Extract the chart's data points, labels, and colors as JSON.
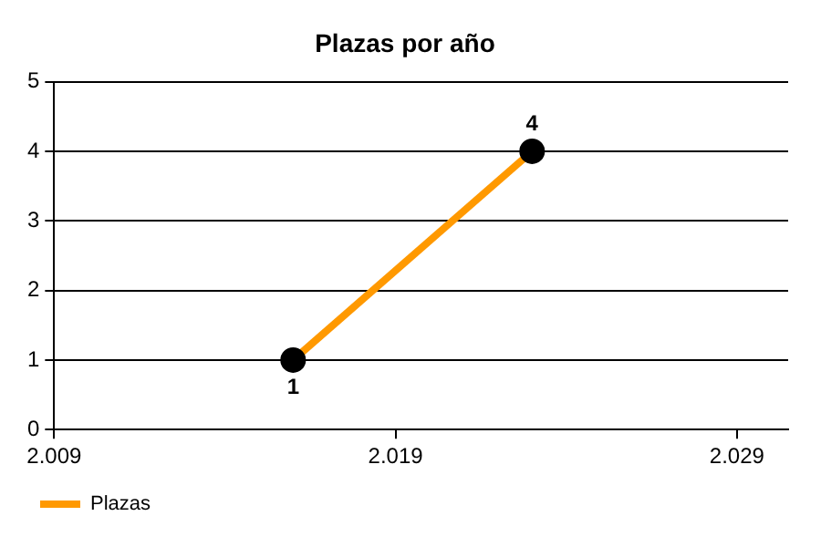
{
  "chart_data": {
    "type": "line",
    "title": "Plazas por año",
    "x": [
      2016,
      2023
    ],
    "series": [
      {
        "name": "Plazas",
        "color": "#ff9900",
        "values": [
          1,
          4
        ]
      }
    ],
    "xlim": [
      2009,
      2030.5
    ],
    "xticks": [
      {
        "value": 2009,
        "label": "2.009"
      },
      {
        "value": 2019,
        "label": "2.019"
      },
      {
        "value": 2029,
        "label": "2.029"
      }
    ],
    "ylim": [
      0,
      5
    ],
    "yticks": [
      0,
      1,
      2,
      3,
      4,
      5
    ],
    "grid": "y",
    "legend": "bottom left",
    "marker": "circle",
    "line_style": "solid",
    "data_labels": true
  }
}
